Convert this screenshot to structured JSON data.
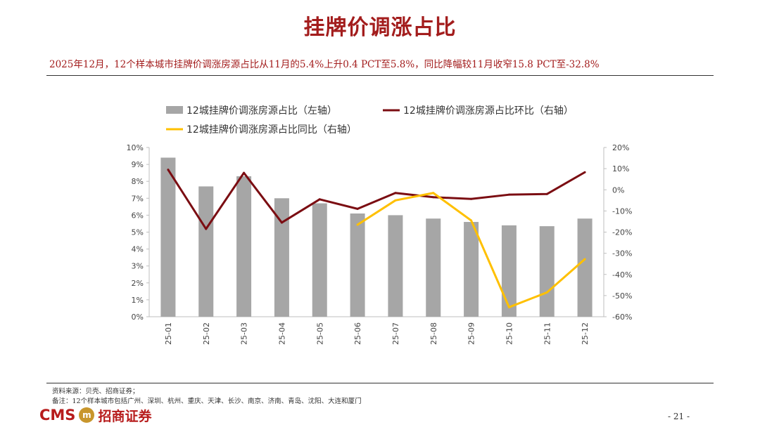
{
  "page": {
    "title": "挂牌价调涨占比",
    "subtitle": "2025年12月，12个样本城市挂牌价调涨房源占比从11月的5.4%上升0.4 PCT至5.8%，同比降幅较11月收窄15.8 PCT至-32.8%",
    "source": "资料来源：贝壳、招商证券；",
    "note": "备注：12个样本城市包括广州、深圳、杭州、重庆、天津、长沙、南京、济南、青岛、沈阳、大连和厦门",
    "logo_text": "CMS",
    "logo_badge": "m",
    "logo_cn": "招商证券",
    "page_number": "- 21 -"
  },
  "colors": {
    "title": "#a31d1d",
    "bar": "#a6a6a6",
    "line_mom": "#7b0d12",
    "line_yoy": "#ffc000"
  },
  "chart_data": {
    "type": "bar",
    "categories": [
      "25-01",
      "25-02",
      "25-03",
      "25-04",
      "25-05",
      "25-06",
      "25-07",
      "25-08",
      "25-09",
      "25-10",
      "25-11",
      "25-12"
    ],
    "series": [
      {
        "name": "12城挂牌价调涨房源占比（左轴）",
        "type": "bar",
        "axis": "left",
        "values": [
          9.4,
          7.7,
          8.3,
          7.0,
          6.7,
          6.1,
          6.0,
          5.8,
          5.6,
          5.4,
          5.35,
          5.8
        ]
      },
      {
        "name": "12城挂牌价调涨房源占比环比（右轴）",
        "type": "line",
        "axis": "right",
        "values": [
          9.5,
          -18.5,
          8.0,
          -15.5,
          -4.5,
          -9.0,
          -1.5,
          -3.5,
          -4.3,
          -2.3,
          -2.0,
          8.3
        ]
      },
      {
        "name": "12城挂牌价调涨房源占比同比（右轴）",
        "type": "line",
        "axis": "right",
        "values": [
          null,
          null,
          null,
          null,
          null,
          -16.5,
          -5.0,
          -1.5,
          -14.5,
          -55.5,
          -48.5,
          -32.8
        ]
      }
    ],
    "left_axis": {
      "ylim": [
        0,
        10
      ],
      "ticks": [
        "0%",
        "1%",
        "2%",
        "3%",
        "4%",
        "5%",
        "6%",
        "7%",
        "8%",
        "9%",
        "10%"
      ]
    },
    "right_axis": {
      "ylim": [
        -60,
        20
      ],
      "ticks": [
        "-60%",
        "-50%",
        "-40%",
        "-30%",
        "-20%",
        "-10%",
        "0%",
        "10%",
        "20%"
      ]
    },
    "grid": false,
    "legend_position": "top"
  }
}
